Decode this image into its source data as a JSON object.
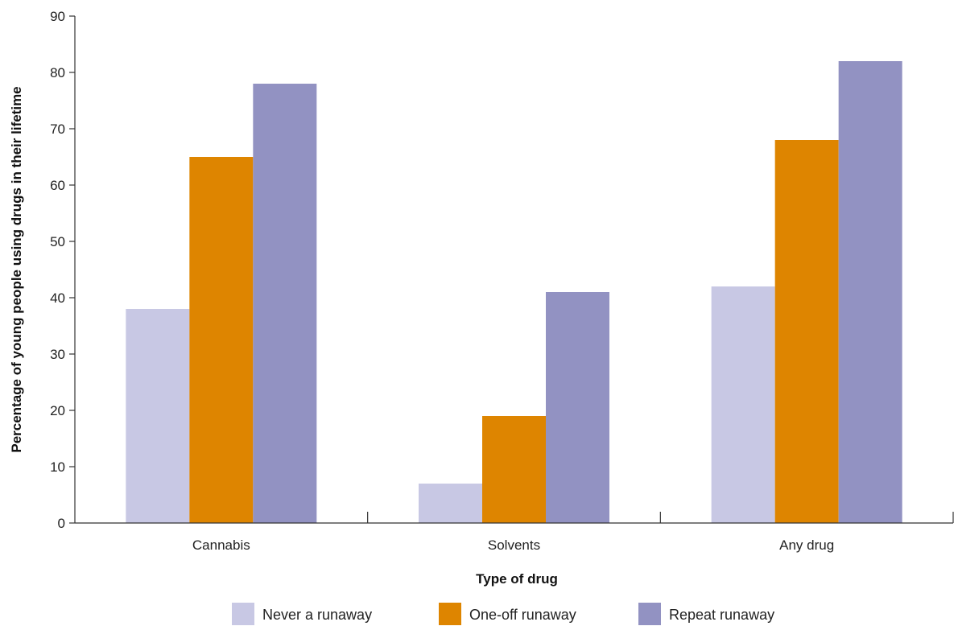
{
  "chart_data": {
    "type": "bar",
    "title": "",
    "xlabel": "Type of drug",
    "ylabel": "Percentage of young people using drugs in their lifetime",
    "categories": [
      "Cannabis",
      "Solvents",
      "Any drug"
    ],
    "series": [
      {
        "name": "Never a runaway",
        "color": "#c8c8e4",
        "values": [
          38,
          7,
          42
        ]
      },
      {
        "name": "One-off runaway",
        "color": "#de8500",
        "values": [
          65,
          19,
          68
        ]
      },
      {
        "name": "Repeat runaway",
        "color": "#9292c2",
        "values": [
          78,
          41,
          82
        ]
      }
    ],
    "ylim": [
      0,
      90
    ],
    "yticks": [
      0,
      10,
      20,
      30,
      40,
      50,
      60,
      70,
      80,
      90
    ],
    "grid": false,
    "legend_position": "bottom"
  }
}
